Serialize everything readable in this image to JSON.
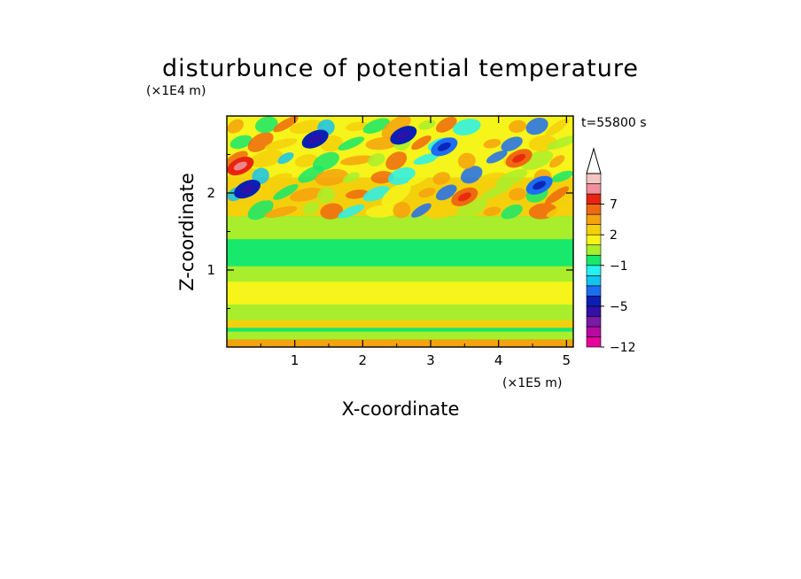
{
  "chart_data": {
    "type": "heatmap",
    "title": "disturbunce of potential temperature",
    "xlabel": "X-coordinate",
    "ylabel": "Z-coordinate",
    "x_unit": "(×1E5 m)",
    "y_unit": "(×1E4 m)",
    "time_label": "t=55800 s",
    "xlim": [
      0,
      5.1
    ],
    "ylim": [
      0,
      3.0
    ],
    "x_ticks": [
      1,
      2,
      3,
      4,
      5
    ],
    "y_ticks": [
      1,
      2
    ],
    "x_tick_labels": [
      "1",
      "2",
      "3",
      "4",
      "5"
    ],
    "y_tick_labels": [
      "1",
      "2"
    ],
    "colorbar": {
      "levels": [
        -12,
        -10,
        -8,
        -6,
        -5,
        -4,
        -3,
        -2,
        -1,
        0,
        1,
        2,
        3,
        5,
        7,
        9,
        11
      ],
      "labels": [
        {
          "value": 7,
          "text": "7"
        },
        {
          "value": 2,
          "text": "2"
        },
        {
          "value": -1,
          "text": "−1"
        },
        {
          "value": -5,
          "text": "−5"
        },
        {
          "value": -12,
          "text": "−12"
        }
      ],
      "colors": [
        "#e8049c",
        "#b60aa0",
        "#7a1aa8",
        "#3210a6",
        "#0a1fb4",
        "#1d6df2",
        "#13c3f0",
        "#25f1f0",
        "#18e86c",
        "#a9ee2c",
        "#f6f41a",
        "#f4d00c",
        "#f4a20e",
        "#ee6a10",
        "#e82410",
        "#f0909a",
        "#f6c4c4"
      ],
      "extend": "max"
    },
    "bands": [
      {
        "z_range": [
          0.0,
          0.1
        ],
        "value": 3,
        "note": "surface warm layer"
      },
      {
        "z_range": [
          0.1,
          0.2
        ],
        "value": 0
      },
      {
        "z_range": [
          0.25,
          0.35
        ],
        "value": 2
      },
      {
        "z_range": [
          0.35,
          0.55
        ],
        "value": 0
      },
      {
        "z_range": [
          0.55,
          0.85
        ],
        "value": 1.5
      },
      {
        "z_range": [
          0.85,
          1.05
        ],
        "value": 0
      },
      {
        "z_range": [
          1.05,
          1.4
        ],
        "value": -1
      },
      {
        "z_range": [
          1.4,
          1.7
        ],
        "value": 0
      },
      {
        "z_range": [
          1.7,
          2.2
        ],
        "value": 2
      },
      {
        "z_range": [
          2.2,
          3.0
        ],
        "value": 1,
        "note": "wave pattern with alternating warm and cold cells"
      }
    ],
    "features": [
      {
        "x": 0.2,
        "z": 2.35,
        "value": 7,
        "kind": "warm cell"
      },
      {
        "x": 0.3,
        "z": 2.05,
        "value": -5,
        "kind": "cold cell"
      },
      {
        "x": 1.3,
        "z": 2.7,
        "value": -5,
        "kind": "cold cell"
      },
      {
        "x": 2.6,
        "z": 2.75,
        "value": -5,
        "kind": "cold cell"
      },
      {
        "x": 3.2,
        "z": 2.6,
        "value": -4,
        "kind": "cold cell"
      },
      {
        "x": 4.6,
        "z": 2.1,
        "value": -4,
        "kind": "cold cell"
      },
      {
        "x": 3.5,
        "z": 1.95,
        "value": 5,
        "kind": "warm cell"
      },
      {
        "x": 4.3,
        "z": 2.45,
        "value": 5,
        "kind": "warm cell"
      }
    ]
  }
}
